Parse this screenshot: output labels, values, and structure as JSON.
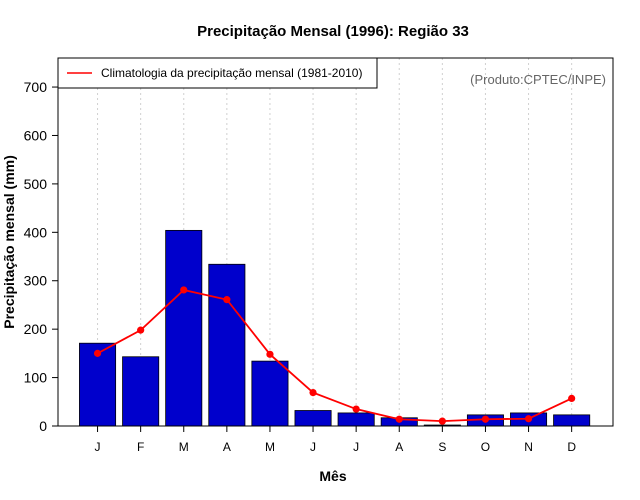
{
  "chart_data": {
    "type": "bar",
    "title": "Precipitação Mensal (1996): Região 33",
    "xlabel": "Mês",
    "ylabel": "Precipitação mensal (mm)",
    "ylim": [
      0,
      760
    ],
    "yticks": [
      0,
      100,
      200,
      300,
      400,
      500,
      600,
      700
    ],
    "categories": [
      "J",
      "F",
      "M",
      "A",
      "M",
      "J",
      "J",
      "A",
      "S",
      "O",
      "N",
      "D"
    ],
    "series": [
      {
        "name": "Precipitação mensal 1996",
        "type": "bar",
        "color": "#0000CC",
        "values": [
          171,
          143,
          404,
          334,
          134,
          32,
          27,
          17,
          2,
          23,
          27,
          23
        ]
      },
      {
        "name": "Climatologia da precipitação mensal (1981-2010)",
        "type": "line",
        "color": "#FF0000",
        "values": [
          150,
          198,
          281,
          261,
          148,
          69,
          35,
          14,
          10,
          14,
          15,
          57
        ]
      }
    ],
    "legend": {
      "position": "top-left",
      "entries": [
        "Climatologia da precipitação mensal (1981-2010)"
      ]
    },
    "annotation": "(Produto:CPTEC/INPE)",
    "grid": "vertical dotted"
  }
}
